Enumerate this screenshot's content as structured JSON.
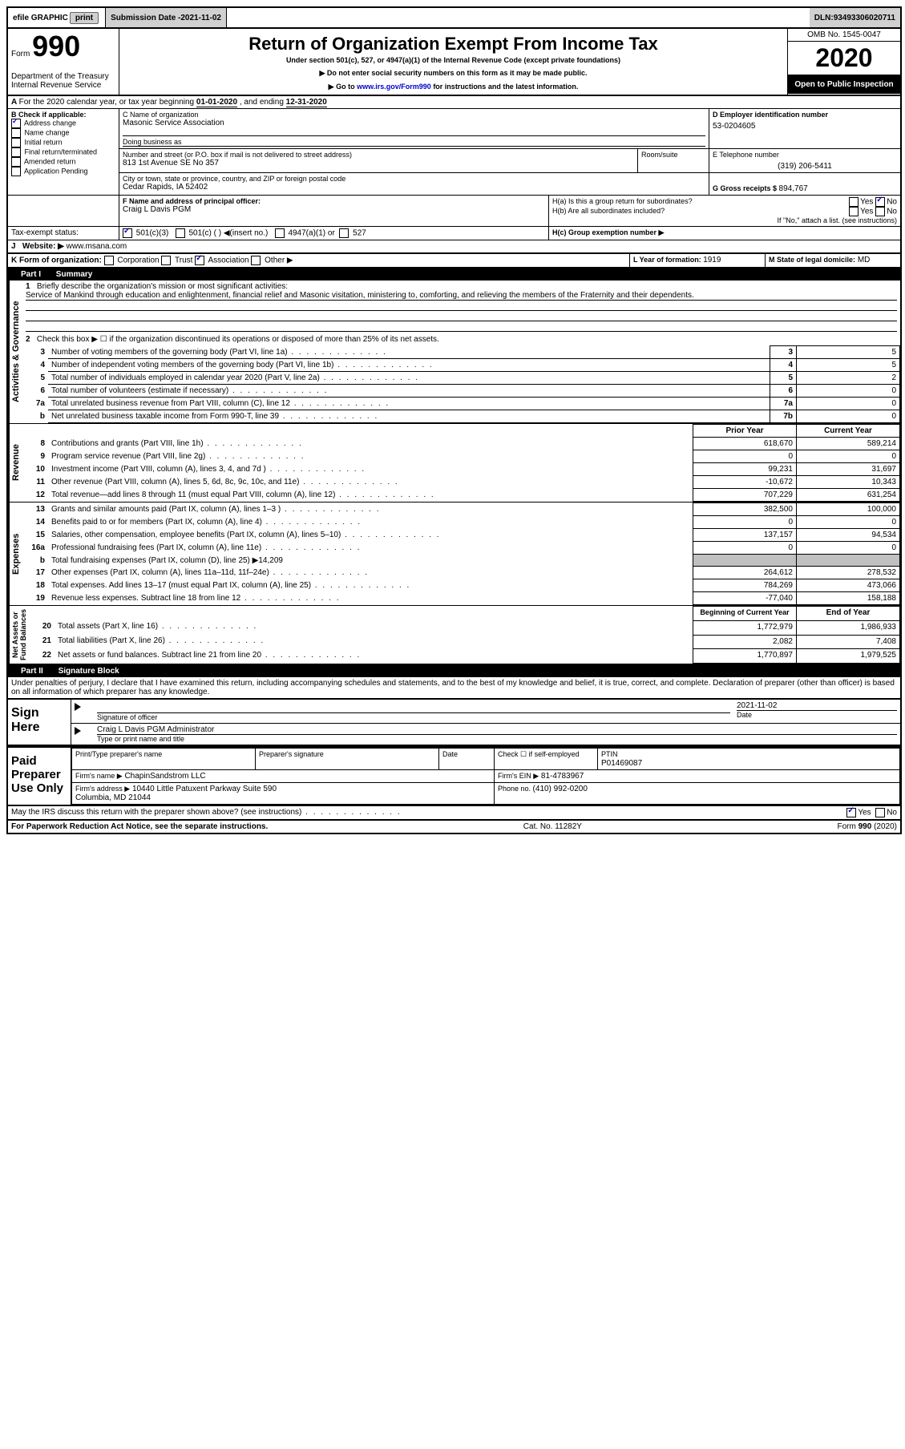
{
  "topbar": {
    "efile": "efile GRAPHIC",
    "print": "print",
    "subdate_label": "Submission Date - ",
    "subdate": "2021-11-02",
    "dln_label": "DLN: ",
    "dln": "93493306020711"
  },
  "header": {
    "form_word": "Form",
    "form_num": "990",
    "dept": "Department of the Treasury\nInternal Revenue Service",
    "title": "Return of Organization Exempt From Income Tax",
    "sub1": "Under section 501(c), 527, or 4947(a)(1) of the Internal Revenue Code (except private foundations)",
    "sub2": "▶ Do not enter social security numbers on this form as it may be made public.",
    "sub3_pre": "▶ Go to ",
    "sub3_link": "www.irs.gov/Form990",
    "sub3_post": " for instructions and the latest information.",
    "omb": "OMB No. 1545-0047",
    "year": "2020",
    "open": "Open to Public Inspection"
  },
  "lineA": {
    "text": "For the 2020 calendar year, or tax year beginning ",
    "begin": "01-01-2020",
    "mid": " , and ending ",
    "end": "12-31-2020"
  },
  "boxB": {
    "label": "B Check if applicable:",
    "items": [
      "Address change",
      "Name change",
      "Initial return",
      "Final return/terminated",
      "Amended return",
      "Application Pending"
    ],
    "checked": [
      true,
      false,
      false,
      false,
      false,
      false
    ]
  },
  "boxC": {
    "label": "C Name of organization",
    "name": "Masonic Service Association",
    "dba_label": "Doing business as",
    "addr_label": "Number and street (or P.O. box if mail is not delivered to street address)",
    "room_label": "Room/suite",
    "addr": "813 1st Avenue SE No 357",
    "city_label": "City or town, state or province, country, and ZIP or foreign postal code",
    "city": "Cedar Rapids, IA  52402"
  },
  "boxD": {
    "label": "D Employer identification number",
    "ein": "53-0204605"
  },
  "boxE": {
    "label": "E Telephone number",
    "phone": "(319) 206-5411"
  },
  "boxG": {
    "label": "G Gross receipts $ ",
    "val": "894,767"
  },
  "boxF": {
    "label": "F  Name and address of principal officer:",
    "name": "Craig L Davis PGM"
  },
  "boxH": {
    "ha": "H(a)  Is this a group return for subordinates?",
    "hb": "H(b)  Are all subordinates included?",
    "hb_note": "If \"No,\" attach a list. (see instructions)",
    "hc": "H(c)  Group exemption number ▶",
    "yes": "Yes",
    "no": "No"
  },
  "taxexempt": {
    "label": "Tax-exempt status:",
    "c3": "501(c)(3)",
    "c": "501(c) (  ) ◀(insert no.)",
    "a4947": "4947(a)(1) or",
    "s527": "527"
  },
  "boxJ": {
    "label": "Website: ▶",
    "val": "www.msana.com"
  },
  "boxK": {
    "label": "K Form of organization:",
    "corp": "Corporation",
    "trust": "Trust",
    "assoc": "Association",
    "other": "Other ▶"
  },
  "boxL": {
    "label": "L Year of formation: ",
    "val": "1919"
  },
  "boxM": {
    "label": "M State of legal domicile:",
    "val": "MD"
  },
  "part1": {
    "label": "Part I",
    "title": "Summary"
  },
  "summary": {
    "q1_label": "Briefly describe the organization's mission or most significant activities:",
    "q1_text": "Service of Mankind through education and enlightenment, financial relief and Masonic visitation, ministering to, comforting, and relieving the members of the Fraternity and their dependents.",
    "q2": "Check this box ▶ ☐  if the organization discontinued its operations or disposed of more than 25% of its net assets.",
    "rows_ag": [
      {
        "n": "3",
        "t": "Number of voting members of the governing body (Part VI, line 1a)",
        "box": "3",
        "v": "5"
      },
      {
        "n": "4",
        "t": "Number of independent voting members of the governing body (Part VI, line 1b)",
        "box": "4",
        "v": "5"
      },
      {
        "n": "5",
        "t": "Total number of individuals employed in calendar year 2020 (Part V, line 2a)",
        "box": "5",
        "v": "2"
      },
      {
        "n": "6",
        "t": "Total number of volunteers (estimate if necessary)",
        "box": "6",
        "v": "0"
      },
      {
        "n": "7a",
        "t": "Total unrelated business revenue from Part VIII, column (C), line 12",
        "box": "7a",
        "v": "0"
      },
      {
        "n": "b",
        "t": "Net unrelated business taxable income from Form 990-T, line 39",
        "box": "7b",
        "v": "0"
      }
    ],
    "prior_label": "Prior Year",
    "current_label": "Current Year",
    "rows_rev": [
      {
        "n": "8",
        "t": "Contributions and grants (Part VIII, line 1h)",
        "py": "618,670",
        "cy": "589,214"
      },
      {
        "n": "9",
        "t": "Program service revenue (Part VIII, line 2g)",
        "py": "0",
        "cy": "0"
      },
      {
        "n": "10",
        "t": "Investment income (Part VIII, column (A), lines 3, 4, and 7d )",
        "py": "99,231",
        "cy": "31,697"
      },
      {
        "n": "11",
        "t": "Other revenue (Part VIII, column (A), lines 5, 6d, 8c, 9c, 10c, and 11e)",
        "py": "-10,672",
        "cy": "10,343"
      },
      {
        "n": "12",
        "t": "Total revenue—add lines 8 through 11 (must equal Part VIII, column (A), line 12)",
        "py": "707,229",
        "cy": "631,254"
      }
    ],
    "rows_exp": [
      {
        "n": "13",
        "t": "Grants and similar amounts paid (Part IX, column (A), lines 1–3 )",
        "py": "382,500",
        "cy": "100,000"
      },
      {
        "n": "14",
        "t": "Benefits paid to or for members (Part IX, column (A), line 4)",
        "py": "0",
        "cy": "0"
      },
      {
        "n": "15",
        "t": "Salaries, other compensation, employee benefits (Part IX, column (A), lines 5–10)",
        "py": "137,157",
        "cy": "94,534"
      },
      {
        "n": "16a",
        "t": "Professional fundraising fees (Part IX, column (A), line 11e)",
        "py": "0",
        "cy": "0"
      },
      {
        "n": "b",
        "t": "Total fundraising expenses (Part IX, column (D), line 25) ▶14,209",
        "py": "",
        "cy": ""
      },
      {
        "n": "17",
        "t": "Other expenses (Part IX, column (A), lines 11a–11d, 11f–24e)",
        "py": "264,612",
        "cy": "278,532"
      },
      {
        "n": "18",
        "t": "Total expenses. Add lines 13–17 (must equal Part IX, column (A), line 25)",
        "py": "784,269",
        "cy": "473,066"
      },
      {
        "n": "19",
        "t": "Revenue less expenses. Subtract line 18 from line 12",
        "py": "-77,040",
        "cy": "158,188"
      }
    ],
    "begin_label": "Beginning of Current Year",
    "end_label": "End of Year",
    "rows_net": [
      {
        "n": "20",
        "t": "Total assets (Part X, line 16)",
        "py": "1,772,979",
        "cy": "1,986,933"
      },
      {
        "n": "21",
        "t": "Total liabilities (Part X, line 26)",
        "py": "2,082",
        "cy": "7,408"
      },
      {
        "n": "22",
        "t": "Net assets or fund balances. Subtract line 21 from line 20",
        "py": "1,770,897",
        "cy": "1,979,525"
      }
    ]
  },
  "sidelabels": {
    "ag": "Activities & Governance",
    "rev": "Revenue",
    "exp": "Expenses",
    "net": "Net Assets or\nFund Balances"
  },
  "part2": {
    "label": "Part II",
    "title": "Signature Block"
  },
  "penalties": "Under penalties of perjury, I declare that I have examined this return, including accompanying schedules and statements, and to the best of my knowledge and belief, it is true, correct, and complete. Declaration of preparer (other than officer) is based on all information of which preparer has any knowledge.",
  "sign": {
    "here": "Sign Here",
    "sig_label": "Signature of officer",
    "date_label": "Date",
    "date": "2021-11-02",
    "name": "Craig L Davis PGM  Administrator",
    "name_label": "Type or print name and title"
  },
  "paid": {
    "title": "Paid Preparer Use Only",
    "print_label": "Print/Type preparer's name",
    "sig_label": "Preparer's signature",
    "date_label": "Date",
    "check_label": "Check ☐ if self-employed",
    "ptin_label": "PTIN",
    "ptin": "P01469087",
    "firm_label": "Firm's name    ▶",
    "firm": "ChapinSandstrom LLC",
    "ein_label": "Firm's EIN ▶",
    "ein": "81-4783967",
    "addr_label": "Firm's address ▶",
    "addr": "10440 Little Patuxent Parkway Suite 590\nColumbia, MD  21044",
    "phone_label": "Phone no. ",
    "phone": "(410) 992-0200"
  },
  "discuss": {
    "text": "May the IRS discuss this return with the preparer shown above? (see instructions)",
    "yes": "Yes",
    "no": "No"
  },
  "footer": {
    "paperwork": "For Paperwork Reduction Act Notice, see the separate instructions.",
    "cat": "Cat. No. 11282Y",
    "form": "Form 990 (2020)"
  }
}
